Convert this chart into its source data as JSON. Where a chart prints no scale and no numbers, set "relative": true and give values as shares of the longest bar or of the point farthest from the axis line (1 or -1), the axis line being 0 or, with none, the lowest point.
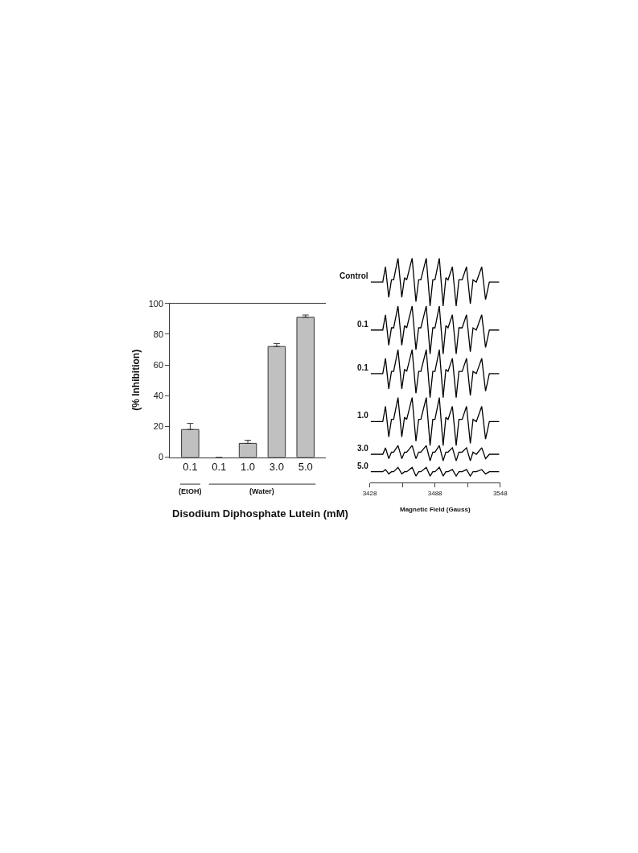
{
  "chart_data": [
    {
      "type": "bar",
      "xlabel": "Disodium Diphosphate Lutein (mM)",
      "ylabel": "(% Inhibition)",
      "categories": [
        "0.1",
        "0.1",
        "1.0",
        "3.0",
        "5.0"
      ],
      "values": [
        18,
        0,
        9,
        72,
        91
      ],
      "errors": [
        [
          18,
          22
        ],
        null,
        [
          9,
          11
        ],
        [
          72,
          74
        ],
        [
          91,
          92.5
        ]
      ],
      "color": "#c0c0c0",
      "ylim": [
        0,
        100
      ],
      "yticks": [
        0,
        20,
        40,
        60,
        80,
        100
      ],
      "annotations": [
        "(EtOH)",
        "(Water)"
      ]
    },
    {
      "type": "line",
      "relative": true,
      "xlabel": "Magnetic Field (Gauss)",
      "xlim": [
        3428,
        3548
      ],
      "xticks": [
        3428,
        {
          "value": 3458,
          "label": null
        },
        3488,
        {
          "value": 3518,
          "label": null
        },
        3548
      ],
      "tick_labels": "x",
      "marker": "none",
      "line_style": "solid",
      "x": [
        3429,
        3440,
        3442.5,
        3445.5,
        3448,
        3450,
        3454,
        3457.5,
        3460,
        3462,
        3467,
        3470.5,
        3473,
        3475,
        3480,
        3483.5,
        3486,
        3488,
        3492,
        3495.5,
        3498,
        3500,
        3504,
        3507.5,
        3510,
        3513,
        3517,
        3520.5,
        3523,
        3526,
        3531,
        3534.5,
        3538,
        3547
      ],
      "series": [
        {
          "name": "Control",
          "color": "#000000",
          "values": [
            0.89,
            0.89,
            0.96,
            0.82,
            0.9,
            0.9,
            1.0,
            0.82,
            0.91,
            0.9,
            1.0,
            0.8,
            0.9,
            0.9,
            1.0,
            0.78,
            0.9,
            0.9,
            1.0,
            0.78,
            0.91,
            0.9,
            0.96,
            0.78,
            0.9,
            0.9,
            0.96,
            0.79,
            0.9,
            0.89,
            0.96,
            0.81,
            0.89,
            0.89
          ]
        },
        {
          "name": "0.1",
          "color": "#000000",
          "values": [
            0.67,
            0.67,
            0.74,
            0.6,
            0.68,
            0.68,
            0.78,
            0.6,
            0.69,
            0.68,
            0.78,
            0.58,
            0.68,
            0.68,
            0.78,
            0.56,
            0.68,
            0.68,
            0.78,
            0.56,
            0.69,
            0.68,
            0.74,
            0.56,
            0.68,
            0.68,
            0.74,
            0.57,
            0.68,
            0.67,
            0.74,
            0.59,
            0.67,
            0.67
          ]
        },
        {
          "name": "0.1",
          "color": "#000000",
          "values": [
            0.47,
            0.47,
            0.54,
            0.4,
            0.48,
            0.48,
            0.58,
            0.4,
            0.49,
            0.48,
            0.58,
            0.38,
            0.48,
            0.48,
            0.58,
            0.36,
            0.48,
            0.48,
            0.58,
            0.36,
            0.49,
            0.48,
            0.54,
            0.36,
            0.48,
            0.48,
            0.54,
            0.37,
            0.48,
            0.47,
            0.54,
            0.39,
            0.47,
            0.47
          ]
        },
        {
          "name": "1.0",
          "color": "#000000",
          "values": [
            0.25,
            0.25,
            0.32,
            0.18,
            0.26,
            0.26,
            0.36,
            0.18,
            0.27,
            0.26,
            0.36,
            0.16,
            0.26,
            0.26,
            0.36,
            0.14,
            0.26,
            0.26,
            0.36,
            0.14,
            0.27,
            0.26,
            0.32,
            0.14,
            0.26,
            0.26,
            0.32,
            0.15,
            0.26,
            0.25,
            0.32,
            0.17,
            0.25,
            0.25
          ]
        },
        {
          "name": "3.0",
          "color": "#000000",
          "values": [
            0.1,
            0.1,
            0.13,
            0.08,
            0.11,
            0.11,
            0.14,
            0.08,
            0.11,
            0.11,
            0.14,
            0.08,
            0.11,
            0.11,
            0.14,
            0.07,
            0.11,
            0.11,
            0.14,
            0.07,
            0.11,
            0.11,
            0.13,
            0.07,
            0.11,
            0.11,
            0.13,
            0.07,
            0.11,
            0.1,
            0.13,
            0.08,
            0.1,
            0.1
          ]
        },
        {
          "name": "5.0",
          "color": "#000000",
          "values": [
            0.02,
            0.02,
            0.03,
            0.01,
            0.02,
            0.02,
            0.04,
            0.01,
            0.02,
            0.02,
            0.04,
            0.0,
            0.02,
            0.02,
            0.04,
            0.0,
            0.02,
            0.02,
            0.04,
            0.0,
            0.02,
            0.02,
            0.03,
            0.0,
            0.02,
            0.02,
            0.03,
            0.0,
            0.02,
            0.02,
            0.03,
            0.01,
            0.02,
            0.02
          ]
        }
      ]
    }
  ]
}
